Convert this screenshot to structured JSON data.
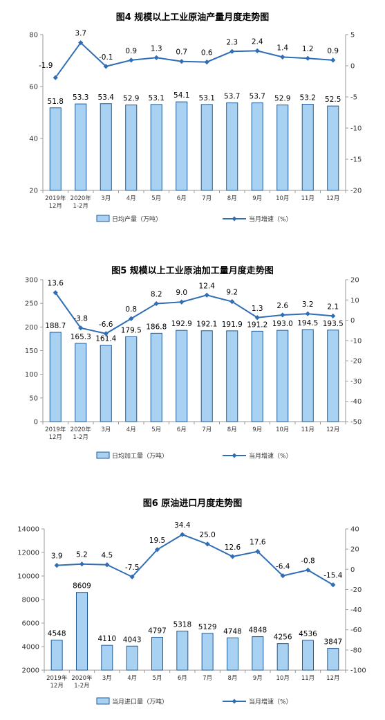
{
  "colors": {
    "bar_fill": "#a9d2f2",
    "bar_stroke": "#1f5a96",
    "line": "#2f6db4"
  },
  "chart_data": [
    {
      "type": "bar",
      "title": "图4  规模以上工业原油产量月度走势图",
      "categories": [
        "2019年\n12月",
        "2020年\n1-2月",
        "3月",
        "4月",
        "5月",
        "6月",
        "7月",
        "8月",
        "9月",
        "10月",
        "11月",
        "12月"
      ],
      "series": [
        {
          "name": "日均产量（万吨）",
          "type": "bar",
          "axis": "left",
          "values": [
            51.8,
            53.3,
            53.4,
            52.9,
            53.1,
            54.1,
            53.1,
            53.7,
            53.7,
            52.9,
            53.2,
            52.5
          ],
          "labels": [
            "51.8",
            "53.3",
            "53.4",
            "52.9",
            "53.1",
            "54.1",
            "53.1",
            "53.7",
            "53.7",
            "52.9",
            "53.2",
            "52.5"
          ]
        },
        {
          "name": "当月增速（%）",
          "type": "line",
          "axis": "right",
          "values": [
            -1.9,
            3.7,
            -0.1,
            0.9,
            1.3,
            0.7,
            0.6,
            2.3,
            2.4,
            1.4,
            1.2,
            0.9
          ],
          "labels": [
            "-1.9",
            "3.7",
            "-0.1",
            "0.9",
            "1.3",
            "0.7",
            "0.6",
            "2.3",
            "2.4",
            "1.4",
            "1.2",
            "0.9"
          ]
        }
      ],
      "ylim_left": [
        20,
        80
      ],
      "yticks_left": [
        20,
        40,
        60,
        80
      ],
      "ylim_right": [
        -20,
        5
      ],
      "yticks_right": [
        -20,
        -15,
        -10,
        -5,
        0,
        5
      ],
      "grid": false,
      "legend": "bottom"
    },
    {
      "type": "bar",
      "title": "图5  规模以上工业原油加工量月度走势图",
      "categories": [
        "2019年\n12月",
        "2020年\n1-2月",
        "3月",
        "4月",
        "5月",
        "6月",
        "7月",
        "8月",
        "9月",
        "10月",
        "11月",
        "12月"
      ],
      "series": [
        {
          "name": "日均加工量（万吨）",
          "type": "bar",
          "axis": "left",
          "values": [
            188.7,
            165.3,
            161.4,
            179.5,
            186.8,
            192.9,
            192.1,
            191.9,
            191.2,
            193.0,
            194.5,
            193.5
          ],
          "labels": [
            "188.7",
            "165.3",
            "161.4",
            "179.5",
            "186.8",
            "192.9",
            "192.1",
            "191.9",
            "191.2",
            "193.0",
            "194.5",
            "193.5"
          ]
        },
        {
          "name": "当月增速（%）",
          "type": "line",
          "axis": "right",
          "values": [
            13.6,
            -3.8,
            -6.6,
            0.8,
            8.2,
            9.0,
            12.4,
            9.2,
            1.3,
            2.6,
            3.2,
            2.1
          ],
          "labels": [
            "13.6",
            "-3.8",
            "-6.6",
            "0.8",
            "8.2",
            "9.0",
            "12.4",
            "9.2",
            "1.3",
            "2.6",
            "3.2",
            "2.1"
          ]
        }
      ],
      "ylim_left": [
        0,
        300
      ],
      "yticks_left": [
        0,
        50,
        100,
        150,
        200,
        250,
        300
      ],
      "ylim_right": [
        -50,
        20
      ],
      "yticks_right": [
        -50,
        -40,
        -30,
        -20,
        -10,
        0,
        10,
        20
      ],
      "grid": false,
      "legend": "bottom"
    },
    {
      "type": "bar",
      "title": "图6  原油进口月度走势图",
      "categories": [
        "2019年\n12月",
        "2020年\n1-2月",
        "3月",
        "4月",
        "5月",
        "6月",
        "7月",
        "8月",
        "9月",
        "10月",
        "11月",
        "12月"
      ],
      "series": [
        {
          "name": "当月进口量（万吨）",
          "type": "bar",
          "axis": "left",
          "values": [
            4548,
            8609,
            4110,
            4043,
            4797,
            5318,
            5129,
            4748,
            4848,
            4256,
            4536,
            3847
          ],
          "labels": [
            "4548",
            "8609",
            "4110",
            "4043",
            "4797",
            "5318",
            "5129",
            "4748",
            "4848",
            "4256",
            "4536",
            "3847"
          ]
        },
        {
          "name": "当月增速（%）",
          "type": "line",
          "axis": "right",
          "values": [
            3.9,
            5.2,
            4.5,
            -7.5,
            19.5,
            34.4,
            25.0,
            12.6,
            17.6,
            -6.4,
            -0.8,
            -15.4
          ],
          "labels": [
            "3.9",
            "5.2",
            "4.5",
            "-7.5",
            "19.5",
            "34.4",
            "25.0",
            "12.6",
            "17.6",
            "-6.4",
            "-0.8",
            "-15.4"
          ]
        }
      ],
      "ylim_left": [
        2000,
        14000
      ],
      "yticks_left": [
        2000,
        4000,
        6000,
        8000,
        10000,
        12000,
        14000
      ],
      "ylim_right": [
        -100,
        40
      ],
      "yticks_right": [
        -100,
        -80,
        -60,
        -40,
        -20,
        0,
        20,
        40
      ],
      "grid": false,
      "legend": "bottom"
    }
  ]
}
